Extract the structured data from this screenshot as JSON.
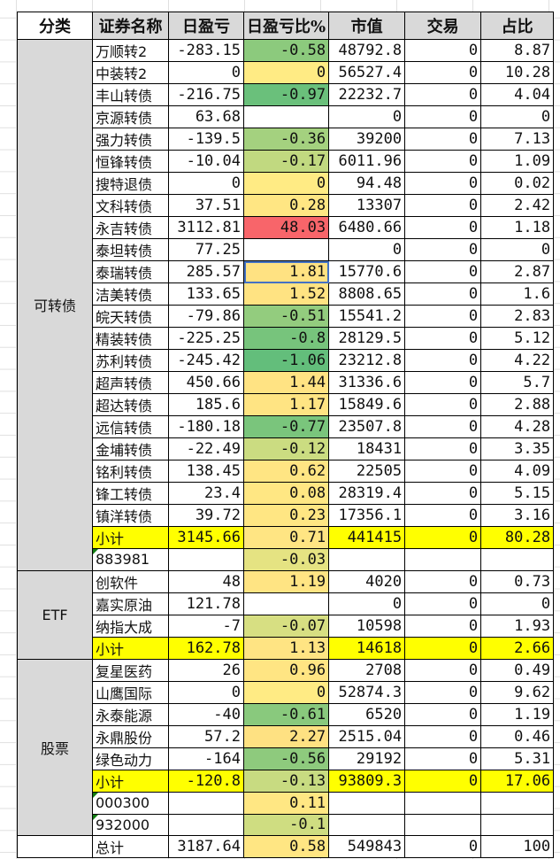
{
  "headers": [
    "分类",
    "证券名称",
    "日盈亏",
    "日盈亏比%",
    "市值",
    "交易",
    "占比"
  ],
  "groups": [
    {
      "category": "可转债",
      "rows": [
        [
          "万顺转2",
          "-283.15",
          "-0.58",
          "48792.8",
          "0",
          "8.87"
        ],
        [
          "中装转2",
          "0",
          "0",
          "56527.4",
          "0",
          "10.28"
        ],
        [
          "丰山转债",
          "-216.75",
          "-0.97",
          "22232.7",
          "0",
          "4.04"
        ],
        [
          "京源转债",
          "63.68",
          "",
          "0",
          "0",
          "0"
        ],
        [
          "强力转债",
          "-139.5",
          "-0.36",
          "39200",
          "0",
          "7.13"
        ],
        [
          "恒锋转债",
          "-10.04",
          "-0.17",
          "6011.96",
          "0",
          "1.09"
        ],
        [
          "搜特退债",
          "0",
          "0",
          "94.48",
          "0",
          "0.02"
        ],
        [
          "文科转债",
          "37.51",
          "0.28",
          "13307",
          "0",
          "2.42"
        ],
        [
          "永吉转债",
          "3112.81",
          "48.03",
          "6480.66",
          "0",
          "1.18"
        ],
        [
          "泰坦转债",
          "77.25",
          "",
          "0",
          "0",
          "0"
        ],
        [
          "泰瑞转债",
          "285.57",
          "1.81",
          "15770.6",
          "0",
          "2.87"
        ],
        [
          "洁美转债",
          "133.65",
          "1.52",
          "8808.65",
          "0",
          "1.6"
        ],
        [
          "皖天转债",
          "-79.86",
          "-0.51",
          "15541.2",
          "0",
          "2.83"
        ],
        [
          "精装转债",
          "-225.25",
          "-0.8",
          "28129.5",
          "0",
          "5.12"
        ],
        [
          "苏利转债",
          "-245.42",
          "-1.06",
          "23212.8",
          "0",
          "4.22"
        ],
        [
          "超声转债",
          "450.66",
          "1.44",
          "31336.6",
          "0",
          "5.7"
        ],
        [
          "超达转债",
          "185.6",
          "1.17",
          "15849.6",
          "0",
          "2.88"
        ],
        [
          "远信转债",
          "-180.18",
          "-0.77",
          "23507.8",
          "0",
          "4.28"
        ],
        [
          "金埔转债",
          "-22.49",
          "-0.12",
          "18431",
          "0",
          "3.35"
        ],
        [
          "铭利转债",
          "138.45",
          "0.62",
          "22505",
          "0",
          "4.09"
        ],
        [
          "锋工转债",
          "23.4",
          "0.08",
          "28319.4",
          "0",
          "5.15"
        ],
        [
          "镇洋转债",
          "39.72",
          "0.23",
          "17356.1",
          "0",
          "3.16"
        ]
      ],
      "subtotal": [
        "小计",
        "3145.66",
        "0.71",
        "441415",
        "0",
        "80.28"
      ],
      "index_rows": [
        [
          "883981",
          "",
          "-0.03",
          "",
          "",
          ""
        ]
      ]
    },
    {
      "category": "ETF",
      "rows": [
        [
          "创软件",
          "48",
          "1.19",
          "4020",
          "0",
          "0.73"
        ],
        [
          "嘉实原油",
          "121.78",
          "",
          "0",
          "0",
          "0"
        ],
        [
          "纳指大成",
          "-7",
          "-0.07",
          "10598",
          "0",
          "1.93"
        ]
      ],
      "subtotal": [
        "小计",
        "162.78",
        "1.13",
        "14618",
        "0",
        "2.66"
      ],
      "index_rows": []
    },
    {
      "category": "股票",
      "rows": [
        [
          "复星医药",
          "26",
          "0.96",
          "2708",
          "0",
          "0.49"
        ],
        [
          "山鹰国际",
          "0",
          "0",
          "52874.3",
          "0",
          "9.62"
        ],
        [
          "永泰能源",
          "-40",
          "-0.61",
          "6520",
          "0",
          "1.19"
        ],
        [
          "永鼎股份",
          "57.2",
          "2.27",
          "2515.04",
          "0",
          "0.46"
        ],
        [
          "绿色动力",
          "-164",
          "-0.56",
          "29192",
          "0",
          "5.31"
        ]
      ],
      "subtotal": [
        "小计",
        "-120.8",
        "-0.13",
        "93809.3",
        "0",
        "17.06"
      ],
      "index_rows": [
        [
          "000300",
          "",
          "0.11",
          "",
          "",
          ""
        ],
        [
          "932000",
          "",
          "-0.1",
          "",
          "",
          ""
        ]
      ]
    }
  ],
  "total": [
    "总计",
    "3187.64",
    "0.58",
    "549843",
    "0",
    "100"
  ],
  "selected_cell": "泰瑞转债",
  "colors": {
    "scale_min": "#63be7b",
    "scale_mid": "#ffeb84",
    "scale_max": "#f8696b",
    "subtotal": "#ffff00",
    "header": "#d9d9d9"
  }
}
